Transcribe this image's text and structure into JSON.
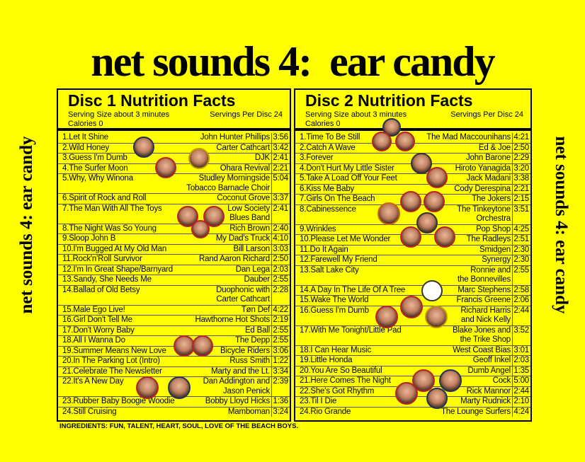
{
  "title": "net sounds 4:  ear candy",
  "side_text": "net sounds 4: ear candy",
  "ingredients": "INGREDIENTS: FUN, TALENT, HEART, SOUL, LOVE OF THE BEACH BOYS.",
  "discs": [
    {
      "title": "Disc 1 Nutrition Facts",
      "serving_size": "Serving Size about 3 minutes",
      "servings": "Servings Per Disc 24",
      "calories": "Calories 0",
      "tracks": [
        {
          "n": "1.",
          "title": "Let It Shine",
          "artist": "John Hunter Phillips",
          "time": "3:56"
        },
        {
          "n": "2.",
          "title": "Wild Honey",
          "artist": "Carter Cathcart",
          "time": "3:42"
        },
        {
          "n": "3.",
          "title": "Guess I'm Dumb",
          "artist": "DJK",
          "time": "2:41"
        },
        {
          "n": "4.",
          "title": "The Surfer Moon",
          "artist": "Ohara Revival",
          "time": "2:21"
        },
        {
          "n": "5.",
          "title": "Why, Why Winona",
          "artist": "Studley Morningside Tobacco Barnacle Choir",
          "artist_lines": [
            "Studley Morningside",
            "Tobacco Barnacle Choir"
          ],
          "time": "5:04"
        },
        {
          "n": "6.",
          "title": "Spirit of Rock and Roll",
          "artist": "Coconut Grove",
          "time": "3:37"
        },
        {
          "n": "7.",
          "title": "The Man With All The Toys",
          "artist": "Low Society Blues Band",
          "artist_lines": [
            "Low Society",
            "Blues Band"
          ],
          "time": "2:41"
        },
        {
          "n": "8.",
          "title": "The Night Was So Young",
          "artist": "Rich Brown",
          "time": "2:40"
        },
        {
          "n": "9.",
          "title": "Sloop John B",
          "artist": "My Dad's Truck",
          "time": "4:10"
        },
        {
          "n": "10.",
          "title": "I'm Bugged At My Old Man",
          "artist": "Bill Larson",
          "time": "3:03"
        },
        {
          "n": "11.",
          "title": "Rock'n'Roll Survivor",
          "artist": "Rand Aaron Richard",
          "time": "2:50"
        },
        {
          "n": "12.",
          "title": "I'm In Great Shape/Barnyard",
          "artist": "Dan Lega",
          "time": "2:03"
        },
        {
          "n": "13.",
          "title": "Sandy, She Needs Me",
          "artist": "Dauber",
          "time": "2:55"
        },
        {
          "n": "14.",
          "title": "Ballad of Old Betsy",
          "artist": "Duophonic with Carter Cathcart",
          "artist_lines": [
            "Duophonic with",
            "Carter Cathcart"
          ],
          "time": "2:28"
        },
        {
          "n": "15.",
          "title": "Male Ego Live!",
          "artist": "Tøn Def",
          "time": "4:22"
        },
        {
          "n": "16.",
          "title": "Girl Don't Tell Me",
          "artist": "Hawthorne Hot Shots",
          "time": "2:19"
        },
        {
          "n": "17.",
          "title": "Don't Worry Baby",
          "artist": "Ed Ball",
          "time": "2:55"
        },
        {
          "n": "18.",
          "title": "All I Wanna Do",
          "artist": "The Depp",
          "time": "2:55"
        },
        {
          "n": "19.",
          "title": "Summer Means New Love",
          "artist": "Bicycle Riders",
          "time": "3:06"
        },
        {
          "n": "20.",
          "title": "In The Parking Lot  (Intro)",
          "artist": "Russ Smith",
          "time": "1:22"
        },
        {
          "n": "21.",
          "title": "Celebrate The Newsletter",
          "artist": "Marty and the Lt.",
          "time": "3:34"
        },
        {
          "n": "22.",
          "title": "It's A New Day",
          "artist": "Dan Addington and Jason Penick",
          "artist_lines": [
            "Dan Addington and",
            "Jason Penick"
          ],
          "time": "2:39"
        },
        {
          "n": "23.",
          "title": "Rubber Baby Boogie Woodie",
          "artist": "Bobby Lloyd Hicks",
          "time": "1:36"
        },
        {
          "n": "24.",
          "title": "Still Cruising",
          "artist": "Mamboman",
          "time": "3:24"
        }
      ]
    },
    {
      "title": "Disc 2 Nutrition Facts",
      "serving_size": "Serving Size about 3 minutes",
      "servings": "Servings Per Disc 24",
      "calories": "Calories 0",
      "tracks": [
        {
          "n": "1.",
          "title": "Time To Be Still",
          "artist": "The Mad Maccounihans",
          "time": "4:21"
        },
        {
          "n": "2.",
          "title": "Catch A Wave",
          "artist": "Ed & Joe",
          "time": "2:50"
        },
        {
          "n": "3.",
          "title": "Forever",
          "artist": "John Barone",
          "time": "2:29"
        },
        {
          "n": "4.",
          "title": "Don't Hurt My Little Sister",
          "artist": "Hiroto Yanagida",
          "time": "3:20"
        },
        {
          "n": "5.",
          "title": "Take A Load Off Your Feet",
          "artist": "Jack Madani",
          "time": "3:38"
        },
        {
          "n": "6.",
          "title": "Kiss Me Baby",
          "artist": "Cody Derespina",
          "time": "2:21"
        },
        {
          "n": "7.",
          "title": "Girls On The Beach",
          "artist": "The Jokers",
          "time": "2:15"
        },
        {
          "n": "8.",
          "title": "Cabinessence",
          "artist": "The Tinkeytone Orchestra",
          "artist_lines": [
            "The Tinkeytone",
            "Orchestra"
          ],
          "time": "3:51"
        },
        {
          "n": "9.",
          "title": "Wrinkles",
          "artist": "Pop Shop",
          "time": "4:25"
        },
        {
          "n": "10.",
          "title": "Please Let Me Wonder",
          "artist": "The Radleys",
          "time": "2:51"
        },
        {
          "n": "11.",
          "title": "Do It Again",
          "artist": "Smidgen",
          "time": "2:30"
        },
        {
          "n": "12.",
          "title": "Farewell My Friend",
          "artist": "Synergy",
          "time": "2:30"
        },
        {
          "n": "13.",
          "title": "Salt Lake City",
          "artist": "Ronnie and the Bonnevilles",
          "artist_lines": [
            "Ronnie and",
            "the Bonnevilles"
          ],
          "time": "2:55"
        },
        {
          "n": "14.",
          "title": "A Day In The Life Of A Tree",
          "artist": "Marc Stephens",
          "time": "2:58"
        },
        {
          "n": "15.",
          "title": "Wake The World",
          "artist": "Francis Greene",
          "time": "2:06"
        },
        {
          "n": "16.",
          "title": "Guess I'm Dumb",
          "artist": "Richard Harris and Nick Kelly",
          "artist_lines": [
            "Richard Harris",
            "and Nick Kelly"
          ],
          "time": "2:44"
        },
        {
          "n": "17.",
          "title": "With Me Tonight/Little Pad",
          "artist": "Blake Jones and the Trike Shop",
          "artist_lines": [
            "Blake Jones and",
            "the Trike Shop"
          ],
          "time": "3:52"
        },
        {
          "n": "18.",
          "title": "I Can Hear Music",
          "artist": "West Coast Bias",
          "time": "3:01"
        },
        {
          "n": "19.",
          "title": "Little Honda",
          "artist": "Geoff Inkel",
          "time": "2:03"
        },
        {
          "n": "20.",
          "title": "You Are So Beautiful",
          "artist": "Dumb Angel",
          "time": "1:35"
        },
        {
          "n": "21.",
          "title": "Here Comes The Night",
          "artist": "Cock",
          "time": "5:00"
        },
        {
          "n": "22.",
          "title": "She's Got Rhythm",
          "artist": "Rick Mannor",
          "time": "2:44"
        },
        {
          "n": "23.",
          "title": "Til I Die",
          "artist": "Marty Rudnick",
          "time": "2:10"
        },
        {
          "n": "24.",
          "title": "Rio Grande",
          "artist": "The Lounge Surfers",
          "time": "4:24"
        }
      ]
    }
  ]
}
